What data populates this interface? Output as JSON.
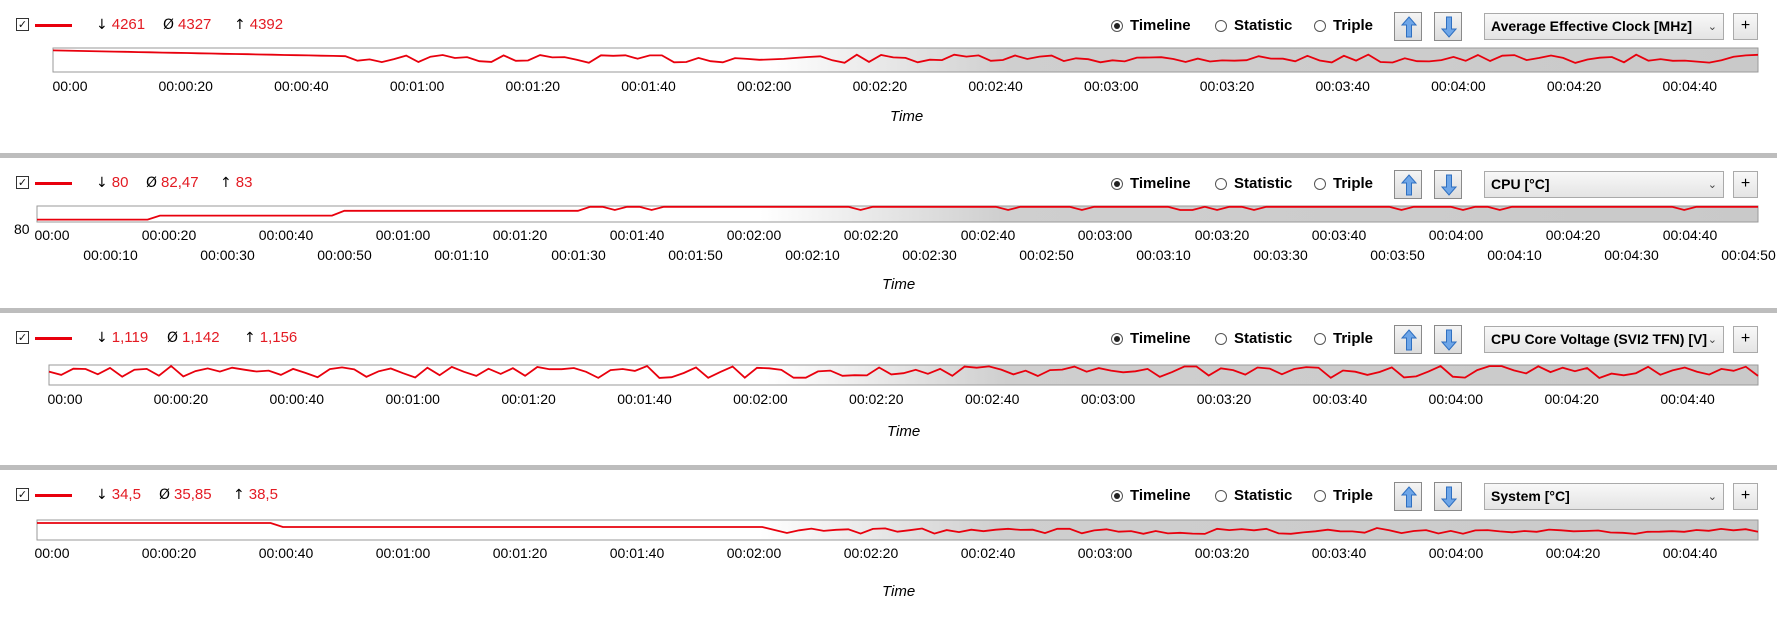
{
  "ui": {
    "radio_timeline": "Timeline",
    "radio_statistic": "Statistic",
    "radio_triple": "Triple",
    "add_label": "+",
    "checkbox_mark": "✓",
    "icons": {
      "up": "arrow-up-icon",
      "down": "arrow-down-icon",
      "chevron": "chevron-down-icon"
    },
    "colors": {
      "series": "#e8000d",
      "minmax_text": "#e31b23",
      "separator": "#bdbdbd"
    }
  },
  "panels": [
    {
      "stats": {
        "min": "4261",
        "avg": "4327",
        "max": "4392"
      },
      "select_value": "Average Effective Clock [MHz]",
      "x_axis_title": "Time",
      "y_label": "",
      "tick_labels_main": [
        "00:00",
        "00:00:20",
        "00:00:40",
        "00:01:00",
        "00:01:20",
        "00:01:40",
        "00:02:00",
        "00:02:20",
        "00:02:40",
        "00:03:00",
        "00:03:20",
        "00:03:40",
        "00:04:00",
        "00:04:20",
        "00:04:40"
      ],
      "tick_labels_alt": []
    },
    {
      "stats": {
        "min": "80",
        "avg": "82,47",
        "max": "83"
      },
      "select_value": "CPU [°C]",
      "x_axis_title": "Time",
      "y_label": "80",
      "tick_labels_main": [
        "00:00",
        "00:00:20",
        "00:00:40",
        "00:01:00",
        "00:01:20",
        "00:01:40",
        "00:02:00",
        "00:02:20",
        "00:02:40",
        "00:03:00",
        "00:03:20",
        "00:03:40",
        "00:04:00",
        "00:04:20",
        "00:04:40"
      ],
      "tick_labels_alt": [
        "00:00:10",
        "00:00:30",
        "00:00:50",
        "00:01:10",
        "00:01:30",
        "00:01:50",
        "00:02:10",
        "00:02:30",
        "00:02:50",
        "00:03:10",
        "00:03:30",
        "00:03:50",
        "00:04:10",
        "00:04:30",
        "00:04:50"
      ]
    },
    {
      "stats": {
        "min": "1,119",
        "avg": "1,142",
        "max": "1,156"
      },
      "select_value": "CPU Core Voltage (SVI2 TFN) [V]",
      "x_axis_title": "Time",
      "y_label": "",
      "tick_labels_main": [
        "00:00",
        "00:00:20",
        "00:00:40",
        "00:01:00",
        "00:01:20",
        "00:01:40",
        "00:02:00",
        "00:02:20",
        "00:02:40",
        "00:03:00",
        "00:03:20",
        "00:03:40",
        "00:04:00",
        "00:04:20",
        "00:04:40"
      ],
      "tick_labels_alt": []
    },
    {
      "stats": {
        "min": "34,5",
        "avg": "35,85",
        "max": "38,5"
      },
      "select_value": "System [°C]",
      "x_axis_title": "Time",
      "y_label": "",
      "tick_labels_main": [
        "00:00",
        "00:00:20",
        "00:00:40",
        "00:01:00",
        "00:01:20",
        "00:01:40",
        "00:02:00",
        "00:02:20",
        "00:02:40",
        "00:03:00",
        "00:03:20",
        "00:03:40",
        "00:04:00",
        "00:04:20",
        "00:04:40"
      ],
      "tick_labels_alt": []
    }
  ]
}
